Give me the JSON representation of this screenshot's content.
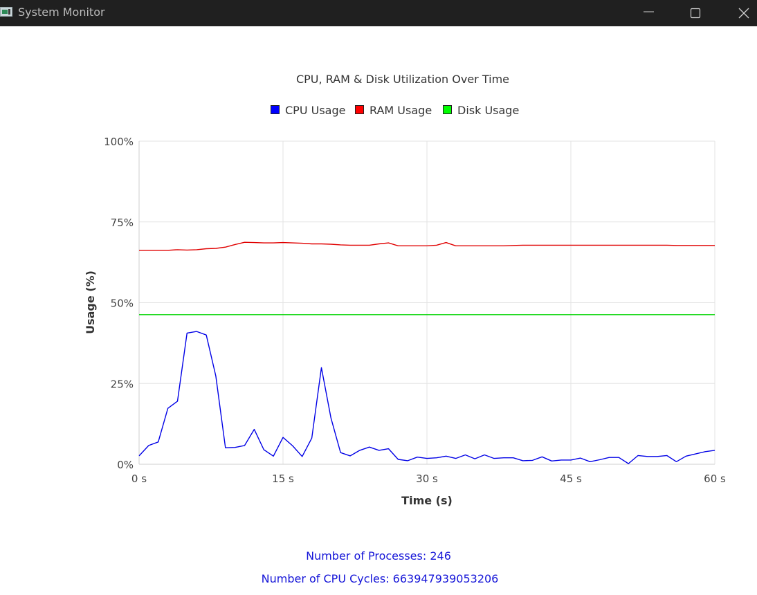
{
  "window": {
    "title": "System Monitor"
  },
  "chart_data": {
    "type": "line",
    "title": "CPU, RAM & Disk Utilization Over Time",
    "xlabel": "Time (s)",
    "ylabel": "Usage (%)",
    "xlim": [
      0,
      60
    ],
    "ylim": [
      0,
      100
    ],
    "x_ticks": [
      0,
      15,
      30,
      45,
      60
    ],
    "x_tick_labels": [
      "0 s",
      "15 s",
      "30 s",
      "45 s",
      "60 s"
    ],
    "y_ticks": [
      0,
      25,
      50,
      75,
      100
    ],
    "y_tick_labels": [
      "0%",
      "25%",
      "50%",
      "75%",
      "100%"
    ],
    "grid": true,
    "legend_position": "top-center",
    "x": [
      0,
      1,
      2,
      3,
      4,
      5,
      6,
      7,
      8,
      9,
      10,
      11,
      12,
      13,
      14,
      15,
      16,
      17,
      18,
      19,
      20,
      21,
      22,
      23,
      24,
      25,
      26,
      27,
      28,
      29,
      30,
      31,
      32,
      33,
      34,
      35,
      36,
      37,
      38,
      39,
      40,
      41,
      42,
      43,
      44,
      45,
      46,
      47,
      48,
      49,
      50,
      51,
      52,
      53,
      54,
      55,
      56,
      57,
      58,
      59,
      60
    ],
    "series": [
      {
        "name": "CPU Usage",
        "color": "#0000e6",
        "legend_color": "#0000ff",
        "values": [
          2.6,
          5.8,
          6.9,
          17.3,
          19.5,
          40.6,
          41.1,
          40.0,
          27.3,
          5.1,
          5.2,
          5.8,
          10.8,
          4.5,
          2.5,
          8.3,
          5.7,
          2.4,
          8.1,
          29.9,
          14.3,
          3.6,
          2.6,
          4.3,
          5.3,
          4.3,
          4.8,
          1.5,
          1.1,
          2.2,
          1.8,
          2.0,
          2.5,
          1.8,
          2.9,
          1.7,
          2.9,
          1.8,
          2.0,
          2.0,
          1.1,
          1.2,
          2.3,
          1.0,
          1.3,
          1.3,
          1.9,
          0.8,
          1.4,
          2.1,
          2.1,
          0.2,
          2.7,
          2.4,
          2.4,
          2.7,
          0.8,
          2.5,
          3.2,
          3.9,
          4.3
        ]
      },
      {
        "name": "RAM Usage",
        "color": "#e00000",
        "legend_color": "#ff0000",
        "values": [
          66.2,
          66.2,
          66.2,
          66.2,
          66.4,
          66.3,
          66.4,
          66.7,
          66.8,
          67.2,
          68.0,
          68.7,
          68.6,
          68.5,
          68.5,
          68.6,
          68.5,
          68.4,
          68.2,
          68.2,
          68.1,
          67.9,
          67.8,
          67.8,
          67.8,
          68.2,
          68.5,
          67.6,
          67.6,
          67.6,
          67.6,
          67.8,
          68.6,
          67.6,
          67.6,
          67.6,
          67.6,
          67.6,
          67.6,
          67.7,
          67.8,
          67.8,
          67.8,
          67.8,
          67.8,
          67.8,
          67.8,
          67.8,
          67.8,
          67.8,
          67.8,
          67.8,
          67.8,
          67.8,
          67.8,
          67.8,
          67.7,
          67.7,
          67.7,
          67.7,
          67.7
        ]
      },
      {
        "name": "Disk Usage",
        "color": "#00d400",
        "legend_color": "#00ff00",
        "values": [
          46.3,
          46.3,
          46.3,
          46.3,
          46.3,
          46.3,
          46.3,
          46.3,
          46.3,
          46.3,
          46.3,
          46.3,
          46.3,
          46.3,
          46.3,
          46.3,
          46.3,
          46.3,
          46.3,
          46.3,
          46.3,
          46.3,
          46.3,
          46.3,
          46.3,
          46.3,
          46.3,
          46.3,
          46.3,
          46.3,
          46.3,
          46.3,
          46.3,
          46.3,
          46.3,
          46.3,
          46.3,
          46.3,
          46.3,
          46.3,
          46.3,
          46.3,
          46.3,
          46.3,
          46.3,
          46.3,
          46.3,
          46.3,
          46.3,
          46.3,
          46.3,
          46.3,
          46.3,
          46.3,
          46.3,
          46.3,
          46.3,
          46.3,
          46.3,
          46.3,
          46.3
        ]
      }
    ]
  },
  "stats": {
    "processes_label": "Number of Processes:",
    "processes_value": "246",
    "cycles_label": "Number of CPU Cycles:",
    "cycles_value": "663947939053206"
  },
  "colors": {
    "titlebar_bg": "#202020",
    "stats_text": "#1515d8",
    "grid": "#e3e3e3"
  },
  "icons": {
    "app": "system-monitor-app-icon",
    "minimize": "minimize-icon",
    "maximize": "maximize-icon",
    "close": "close-icon"
  }
}
